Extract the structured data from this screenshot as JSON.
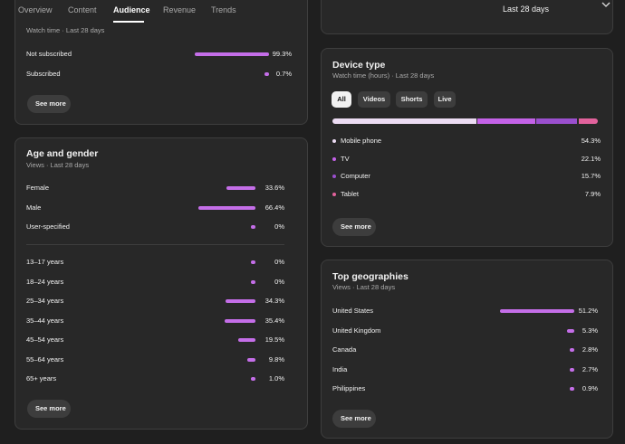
{
  "tabs": [
    "Overview",
    "Content",
    "Audience",
    "Revenue",
    "Trends"
  ],
  "active_tab": 2,
  "date_range": "Last 28 days",
  "bar_color": "#c46ee8",
  "subscription": {
    "subtitle": "Watch time · Last 28 days",
    "rows": [
      {
        "label": "Not subscribed",
        "value": 99.3,
        "value_label": "99.3%"
      },
      {
        "label": "Subscribed",
        "value": 0.7,
        "value_label": "0.7%"
      }
    ],
    "button": "See more"
  },
  "age_gender": {
    "title": "Age and gender",
    "subtitle": "Views · Last 28 days",
    "gender": [
      {
        "label": "Female",
        "value": 33.6,
        "value_label": "33.6%"
      },
      {
        "label": "Male",
        "value": 66.4,
        "value_label": "66.4%"
      },
      {
        "label": "User-specified",
        "value": 0,
        "value_label": "0%"
      }
    ],
    "age": [
      {
        "label": "13–17 years",
        "value": 0,
        "value_label": "0%"
      },
      {
        "label": "18–24 years",
        "value": 0,
        "value_label": "0%"
      },
      {
        "label": "25–34 years",
        "value": 34.3,
        "value_label": "34.3%"
      },
      {
        "label": "35–44 years",
        "value": 35.4,
        "value_label": "35.4%"
      },
      {
        "label": "45–54 years",
        "value": 19.5,
        "value_label": "19.5%"
      },
      {
        "label": "55–64 years",
        "value": 9.8,
        "value_label": "9.8%"
      },
      {
        "label": "65+ years",
        "value": 1.0,
        "value_label": "1.0%"
      }
    ],
    "button": "See more"
  },
  "device": {
    "title": "Device type",
    "subtitle": "Watch time (hours) · Last 28 days",
    "filters": [
      "All",
      "Videos",
      "Shorts",
      "Live"
    ],
    "active_filter": 0,
    "rows": [
      {
        "label": "Mobile phone",
        "value": 54.3,
        "value_label": "54.3%",
        "color": "#ecdcf3"
      },
      {
        "label": "TV",
        "value": 22.1,
        "value_label": "22.1%",
        "color": "#c462e8"
      },
      {
        "label": "Computer",
        "value": 15.7,
        "value_label": "15.7%",
        "color": "#9a4fce"
      },
      {
        "label": "Tablet",
        "value": 7.9,
        "value_label": "7.9%",
        "color": "#e2629c"
      }
    ],
    "button": "See more"
  },
  "geographies": {
    "title": "Top geographies",
    "subtitle": "Views · Last 28 days",
    "rows": [
      {
        "label": "United States",
        "value": 51.2,
        "value_label": "51.2%"
      },
      {
        "label": "United Kingdom",
        "value": 5.3,
        "value_label": "5.3%"
      },
      {
        "label": "Canada",
        "value": 2.8,
        "value_label": "2.8%"
      },
      {
        "label": "India",
        "value": 2.7,
        "value_label": "2.7%"
      },
      {
        "label": "Philippines",
        "value": 0.9,
        "value_label": "0.9%"
      }
    ],
    "button": "See more"
  }
}
